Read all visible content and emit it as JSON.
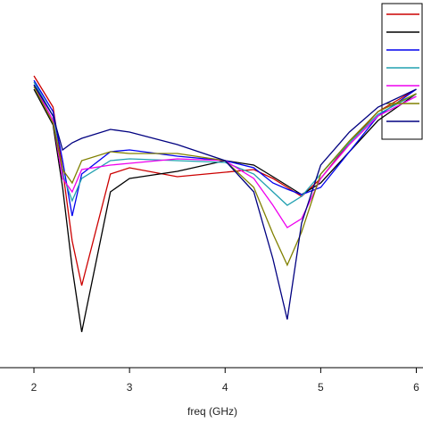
{
  "chart_data": {
    "type": "line",
    "x_label": "freq (GHz)",
    "x": [
      2,
      2.2,
      2.3,
      2.4,
      2.5,
      2.8,
      3,
      3.5,
      4,
      4.3,
      4.5,
      4.65,
      4.8,
      5,
      5.3,
      5.6,
      6
    ],
    "series": [
      {
        "color": "#cc0000",
        "values": [
          327,
          292,
          222,
          142,
          92,
          217,
          224,
          214,
          219,
          222,
          212,
          202,
          192,
          212,
          252,
          287,
          312
        ]
      },
      {
        "color": "#000000",
        "values": [
          312,
          272,
          202,
          112,
          40,
          197,
          212,
          220,
          232,
          227,
          214,
          204,
          194,
          207,
          242,
          277,
          307
        ]
      },
      {
        "color": "#0000ee",
        "values": [
          322,
          287,
          232,
          170,
          217,
          242,
          244,
          237,
          232,
          224,
          207,
          200,
          194,
          202,
          242,
          282,
          312
        ]
      },
      {
        "color": "#20a0b0",
        "values": [
          320,
          282,
          217,
          187,
          212,
          232,
          234,
          232,
          230,
          217,
          197,
          182,
          192,
          217,
          252,
          284,
          307
        ]
      },
      {
        "color": "#ee00ee",
        "values": [
          317,
          277,
          212,
          197,
          222,
          227,
          229,
          234,
          232,
          212,
          182,
          157,
          167,
          212,
          250,
          282,
          304
        ]
      },
      {
        "color": "#808000",
        "values": [
          315,
          274,
          222,
          207,
          232,
          242,
          240,
          240,
          232,
          202,
          150,
          115,
          152,
          217,
          254,
          287,
          307
        ]
      },
      {
        "color": "#000080",
        "values": [
          317,
          282,
          244,
          252,
          257,
          267,
          264,
          250,
          232,
          197,
          122,
          54,
          162,
          227,
          264,
          292,
          312
        ]
      }
    ],
    "xlim": [
      1.645,
      6.07
    ],
    "xticks": [
      2,
      3,
      4,
      5,
      6
    ],
    "ylim": [
      0,
      412
    ]
  }
}
